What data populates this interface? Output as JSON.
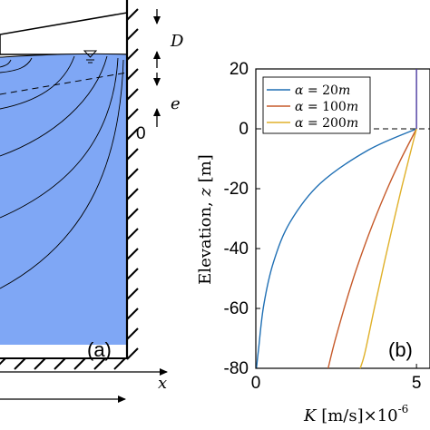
{
  "panel_a": {
    "label": "(a)",
    "x_axis_symbol": "x",
    "dim_D_symbol": "D",
    "dim_e_symbol": "e",
    "zero_mark": "0",
    "water_color": "#7fa7f5",
    "water_icon": "water-table-triangle-icon"
  },
  "panel_b": {
    "label": "(b)",
    "ylabel_text": "Elevation,",
    "ylabel_var": "z",
    "ylabel_unit": "[m]",
    "xlabel_var": "K",
    "xlabel_unit": "[m/s]",
    "xlabel_exponent": "×10",
    "xlabel_power": "-6",
    "yticks": [
      "20",
      "0",
      "-20",
      "-40",
      "-60",
      "-80"
    ],
    "xticks": [
      "0",
      "5"
    ],
    "legend": [
      {
        "alpha": "α",
        "eq": " = ",
        "value": "20",
        "unit": "m",
        "color": "#1f6fb4"
      },
      {
        "alpha": "α",
        "eq": " = ",
        "value": "100",
        "unit": "m",
        "color": "#c65a2a"
      },
      {
        "alpha": "α",
        "eq": " = ",
        "value": "200",
        "unit": "m",
        "color": "#e0b12a"
      }
    ]
  },
  "chart_data": {
    "type": "line",
    "xlabel": "K [m/s] ×10-6",
    "ylabel": "Elevation, z [m]",
    "xlim": [
      0,
      5.5
    ],
    "ylim": [
      -80,
      20
    ],
    "grid": false,
    "legend_position": "top-left",
    "series": [
      {
        "name": "α = 20m",
        "color": "#1f6fb4",
        "x": [
          5,
          3.5,
          2.0,
          1.06,
          0.55,
          0.25,
          0.09,
          0.02
        ],
        "y": [
          0,
          -7.1,
          -18.3,
          -31.3,
          -44.5,
          -58.6,
          -73.1,
          -80
        ]
      },
      {
        "name": "α = 100m",
        "color": "#c65a2a",
        "x": [
          5,
          4.5,
          4.0,
          3.5,
          3.0,
          2.5,
          2.25
        ],
        "y": [
          0,
          -10.5,
          -22.3,
          -35.7,
          -51.1,
          -69.3,
          -80
        ]
      },
      {
        "name": "α = 200m",
        "color": "#e0b12a",
        "x": [
          5,
          4.6,
          4.3,
          4.0,
          3.7,
          3.4,
          3.25
        ],
        "y": [
          0,
          -16.9,
          -30.5,
          -44.6,
          -59.3,
          -74.6,
          -80
        ]
      },
      {
        "name": "",
        "color": "#4b3aa0",
        "x": [
          5,
          5
        ],
        "y": [
          0,
          20
        ]
      }
    ]
  }
}
